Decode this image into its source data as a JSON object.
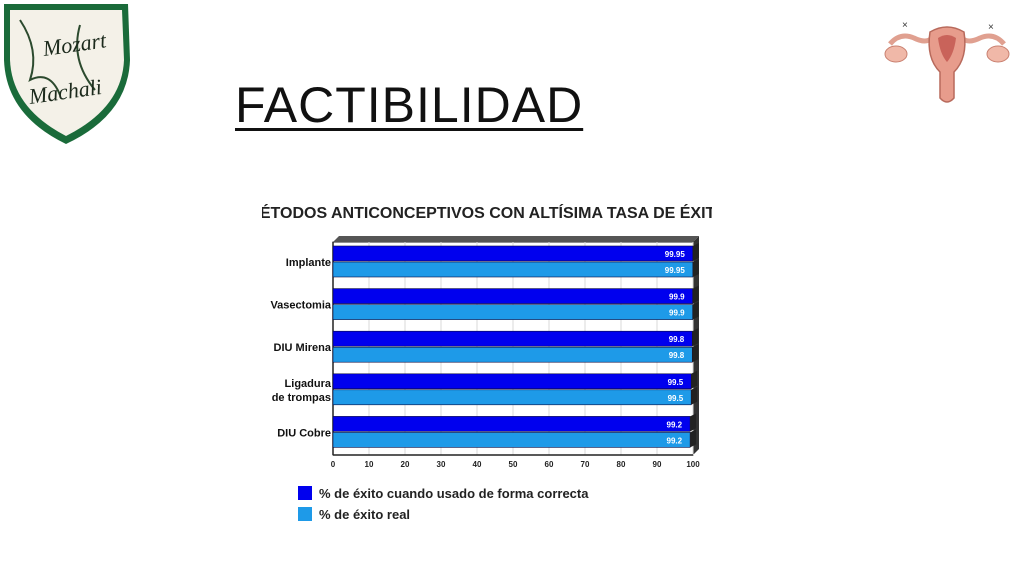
{
  "slide": {
    "title": "FACTIBILIDAD"
  },
  "logo": {
    "line1": "Mozart",
    "line2": "Machali"
  },
  "icons": {
    "logo": "school-crest-logo",
    "illustration": "uterus-illustration-icon"
  },
  "colors": {
    "correct": "#0000ee",
    "real": "#1e9ae8",
    "title_text": "#111111"
  },
  "chart_data": {
    "type": "bar",
    "orientation": "horizontal",
    "title": "MÉTODOS ANTICONCEPTIVOS CON ALTÍSIMA TASA DE ÉXITO",
    "categories": [
      [
        "Implante"
      ],
      [
        "Vasectomia"
      ],
      [
        "DIU Mirena"
      ],
      [
        "Ligadura",
        "de trompas"
      ],
      [
        "DIU Cobre"
      ]
    ],
    "series": [
      {
        "name": "% de éxito cuando usado de forma correcta",
        "color": "#0000ee",
        "values": [
          99.95,
          99.9,
          99.8,
          99.5,
          99.2
        ],
        "labels": [
          "99.95",
          "99.9",
          "99.8",
          "99.5",
          "99.2"
        ]
      },
      {
        "name": "% de éxito real",
        "color": "#1e9ae8",
        "values": [
          99.95,
          99.9,
          99.8,
          99.5,
          99.2
        ],
        "labels": [
          "99.95",
          "99.9",
          "99.8",
          "99.5",
          "99.2"
        ]
      }
    ],
    "xlim": [
      0,
      100
    ],
    "xticks": [
      "0",
      "10",
      "20",
      "30",
      "40",
      "50",
      "60",
      "70",
      "80",
      "90",
      "100"
    ],
    "legend_position": "bottom-left",
    "grid": true,
    "style": "3d"
  }
}
